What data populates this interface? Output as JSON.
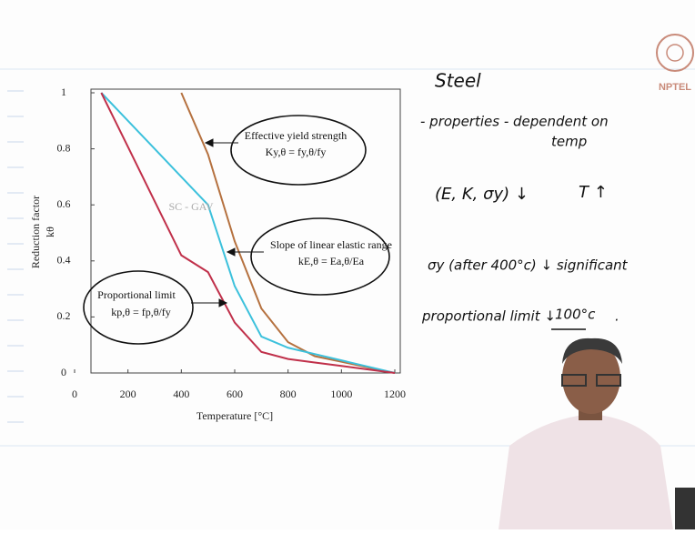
{
  "chart_data": {
    "type": "line",
    "x_label": "Temperature [°C]",
    "y_label": "Reduction factor",
    "y_symbol": "kθ",
    "x": [
      100,
      200,
      300,
      400,
      500,
      600,
      700,
      800,
      900,
      1000,
      1100,
      1200
    ],
    "series": [
      {
        "name": "Effective yield strength",
        "color": "#b5713f",
        "values": [
          null,
          null,
          null,
          1,
          0.78,
          0.47,
          0.23,
          0.11,
          0.06,
          0.04,
          0.02,
          0
        ]
      },
      {
        "name": "Slope of linear elastic range",
        "color": "#3cc1dc",
        "values": [
          1,
          0.9,
          0.8,
          0.7,
          0.6,
          0.31,
          0.13,
          0.09,
          0.0675,
          0.045,
          0.0225,
          0
        ]
      },
      {
        "name": "Proportional limit",
        "color": "#c0304a",
        "values": [
          1,
          0.807,
          0.613,
          0.42,
          0.36,
          0.18,
          0.075,
          0.05,
          0.0375,
          0.025,
          0.0125,
          0
        ]
      }
    ],
    "formulas": [
      "Ky,θ = fy,θ/fy",
      "kE,θ = Ea,θ/Ea",
      "kp,θ = fp,θ/fy"
    ],
    "watermark": "SC - GAV",
    "xlim": [
      0,
      1200
    ],
    "xticks": [
      0,
      200,
      400,
      600,
      800,
      1000,
      1200
    ],
    "ylim": [
      0,
      1
    ],
    "yticks": [
      0,
      0.2,
      0.4,
      0.6,
      0.8,
      1
    ]
  },
  "notes": [
    "Steel",
    "- properties - dependent on",
    "temp",
    "(E, K, σy) ↓",
    "T ↑",
    "σy (after 400°c) ↓ significant",
    "proportional limit ↓",
    "100°c",
    "."
  ],
  "logo": "NPTEL"
}
